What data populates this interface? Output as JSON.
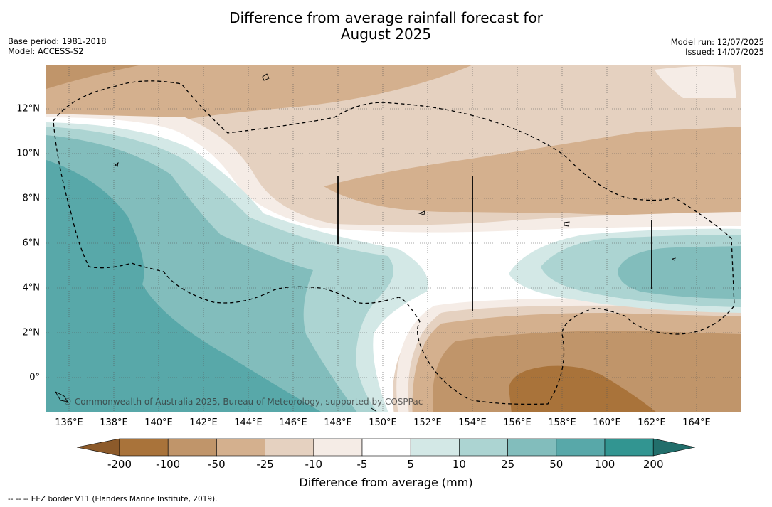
{
  "title_line1": "Difference from average rainfall forecast for",
  "title_line2": "August 2025",
  "base_period": "Base period: 1981-2018",
  "model": "Model: ACCESS-S2",
  "model_run": "Model run: 12/07/2025",
  "issued": "Issued: 14/07/2025",
  "credit": "© Commonwealth of Australia 2025, Bureau of Meteorology, supported by COSPPac",
  "lon_labels": [
    "136°E",
    "138°E",
    "140°E",
    "142°E",
    "144°E",
    "146°E",
    "148°E",
    "150°E",
    "152°E",
    "154°E",
    "156°E",
    "158°E",
    "160°E",
    "162°E",
    "164°E"
  ],
  "lat_labels": [
    "12°N",
    "10°N",
    "8°N",
    "6°N",
    "4°N",
    "2°N",
    "0°"
  ],
  "colorbar": {
    "title": "Difference from average (mm)",
    "ticks": [
      "-200",
      "-100",
      "-50",
      "-25",
      "-10",
      "-5",
      "5",
      "10",
      "25",
      "50",
      "100",
      "200"
    ],
    "colors": [
      "#8c5a2a",
      "#a9733a",
      "#c0956a",
      "#d4b08e",
      "#e5d1c0",
      "#f5ece6",
      "#ffffff",
      "#d3e8e6",
      "#acd4d2",
      "#82bdbc",
      "#58a8a9",
      "#329591",
      "#226e6b"
    ]
  },
  "legend_note": "-- -- -- EEZ border V11 (Flanders Marine Institute, 2019)."
}
